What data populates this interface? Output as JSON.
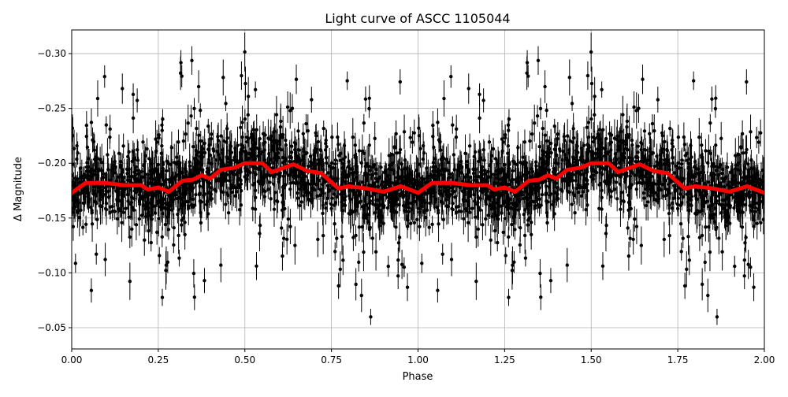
{
  "chart_data": {
    "type": "scatter",
    "title": "Light curve of ASCC 1105044",
    "xlabel": "Phase",
    "ylabel": "Δ Magnitude",
    "xlim": [
      0.0,
      2.0
    ],
    "ylim": [
      -0.0306,
      -0.3216
    ],
    "y_inverted": true,
    "grid": true,
    "xticks": [
      0.0,
      0.25,
      0.5,
      0.75,
      1.0,
      1.25,
      1.5,
      1.75,
      2.0
    ],
    "xtick_labels": [
      "0.00",
      "0.25",
      "0.50",
      "0.75",
      "1.00",
      "1.25",
      "1.50",
      "1.75",
      "2.00"
    ],
    "yticks": [
      -0.3,
      -0.25,
      -0.2,
      -0.15,
      -0.1,
      -0.05
    ],
    "ytick_labels": [
      "−0.30",
      "−0.25",
      "−0.20",
      "−0.15",
      "−0.10",
      "−0.05"
    ],
    "points_color": "#000000",
    "binned_curve_color": "#ff0000",
    "binned_curve": {
      "phase": [
        0.0,
        0.04,
        0.1,
        0.15,
        0.2,
        0.22,
        0.25,
        0.28,
        0.32,
        0.35,
        0.375,
        0.4,
        0.43,
        0.47,
        0.5,
        0.55,
        0.578,
        0.64,
        0.68,
        0.72,
        0.77,
        0.8,
        0.85,
        0.9,
        0.95,
        1.0
      ],
      "magnitude": [
        -0.173,
        -0.182,
        -0.182,
        -0.18,
        -0.18,
        -0.176,
        -0.178,
        -0.174,
        -0.184,
        -0.185,
        -0.189,
        -0.186,
        -0.194,
        -0.196,
        -0.2,
        -0.2,
        -0.192,
        -0.199,
        -0.193,
        -0.191,
        -0.177,
        -0.179,
        -0.177,
        -0.174,
        -0.179,
        -0.173
      ]
    },
    "points_scatter_spread": 0.015
  }
}
